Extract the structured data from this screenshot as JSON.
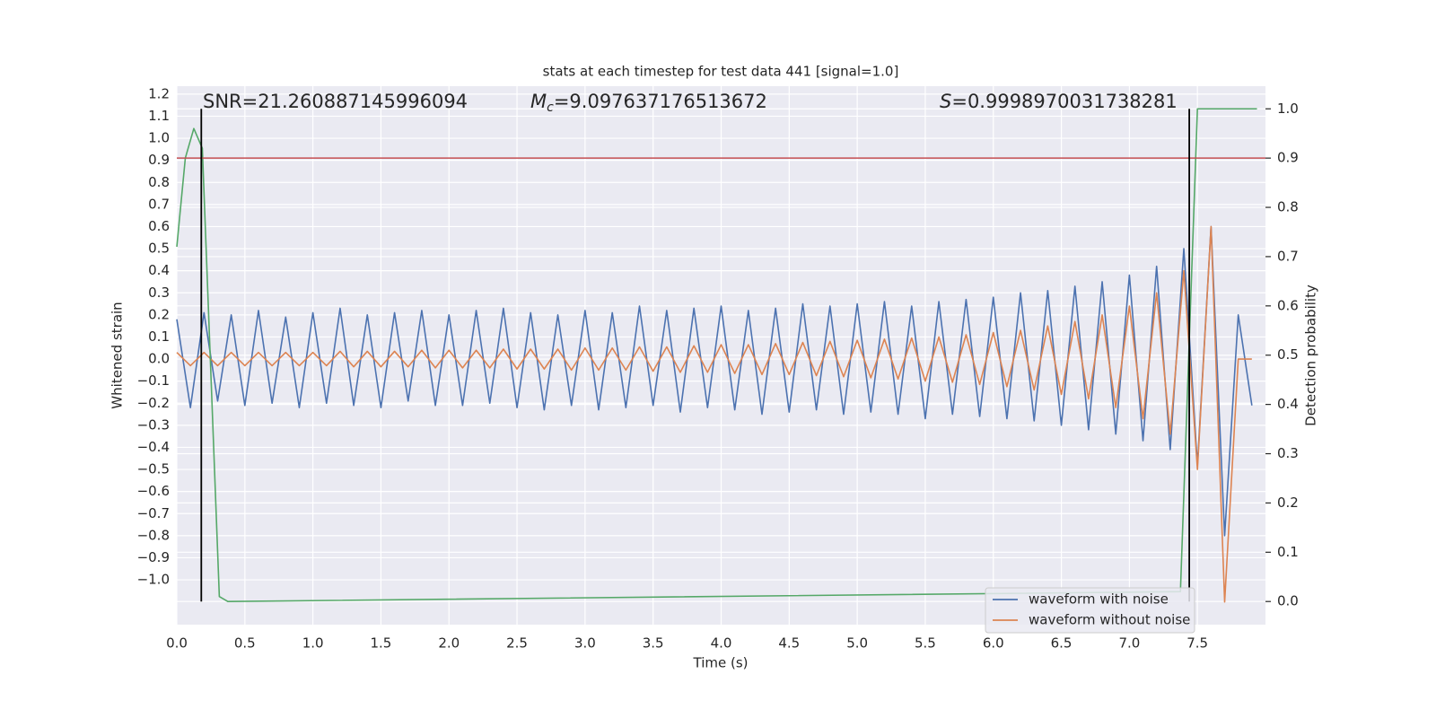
{
  "chart_data": {
    "type": "line",
    "title": "stats at each timestep for test data 441 [signal=1.0]",
    "xlabel": "Time (s)",
    "ylabel": "Whitened strain",
    "y2label": "Detection probability",
    "annotations": {
      "snr": "SNR=21.260887145996094",
      "mc": {
        "symbol": "M",
        "subscript": "c",
        "text": "=9.097637176513672"
      },
      "s": {
        "symbol": "S",
        "text": "=0.9998970031738281"
      }
    },
    "xlim": [
      0,
      8.0
    ],
    "ylim": [
      -1.203,
      1.236
    ],
    "y2lim": [
      -0.047,
      1.046
    ],
    "xticks": [
      {
        "value": 0,
        "label": "0.0"
      },
      {
        "value": 0.5,
        "label": "0.5"
      },
      {
        "value": 1,
        "label": "1.0"
      },
      {
        "value": 1.5,
        "label": "1.5"
      },
      {
        "value": 2,
        "label": "2.0"
      },
      {
        "value": 2.5,
        "label": "2.5"
      },
      {
        "value": 3,
        "label": "3.0"
      },
      {
        "value": 3.5,
        "label": "3.5"
      },
      {
        "value": 4,
        "label": "4.0"
      },
      {
        "value": 4.5,
        "label": "4.5"
      },
      {
        "value": 5,
        "label": "5.0"
      },
      {
        "value": 5.5,
        "label": "5.5"
      },
      {
        "value": 6,
        "label": "6.0"
      },
      {
        "value": 6.5,
        "label": "6.5"
      },
      {
        "value": 7,
        "label": "7.0"
      },
      {
        "value": 7.5,
        "label": "7.5"
      }
    ],
    "yticks": [
      {
        "value": -1.0,
        "label": "−1.0"
      },
      {
        "value": -0.9,
        "label": "−0.9"
      },
      {
        "value": -0.8,
        "label": "−0.8"
      },
      {
        "value": -0.7,
        "label": "−0.7"
      },
      {
        "value": -0.6,
        "label": "−0.6"
      },
      {
        "value": -0.5,
        "label": "−0.5"
      },
      {
        "value": -0.4,
        "label": "−0.4"
      },
      {
        "value": -0.3,
        "label": "−0.3"
      },
      {
        "value": -0.2,
        "label": "−0.2"
      },
      {
        "value": -0.1,
        "label": "−0.1"
      },
      {
        "value": 0,
        "label": "0.0"
      },
      {
        "value": 0.1,
        "label": "0.1"
      },
      {
        "value": 0.2,
        "label": "0.2"
      },
      {
        "value": 0.3,
        "label": "0.3"
      },
      {
        "value": 0.4,
        "label": "0.4"
      },
      {
        "value": 0.5,
        "label": "0.5"
      },
      {
        "value": 0.6,
        "label": "0.6"
      },
      {
        "value": 0.7,
        "label": "0.7"
      },
      {
        "value": 0.8,
        "label": "0.8"
      },
      {
        "value": 0.9,
        "label": "0.9"
      },
      {
        "value": 1.0,
        "label": "1.0"
      },
      {
        "value": 1.1,
        "label": "1.1"
      },
      {
        "value": 1.2,
        "label": "1.2"
      }
    ],
    "y2ticks": [
      {
        "value": 0,
        "label": "0.0"
      },
      {
        "value": 0.1,
        "label": "0.1"
      },
      {
        "value": 0.2,
        "label": "0.2"
      },
      {
        "value": 0.3,
        "label": "0.3"
      },
      {
        "value": 0.4,
        "label": "0.4"
      },
      {
        "value": 0.5,
        "label": "0.5"
      },
      {
        "value": 0.6,
        "label": "0.6"
      },
      {
        "value": 0.7,
        "label": "0.7"
      },
      {
        "value": 0.8,
        "label": "0.8"
      },
      {
        "value": 0.9,
        "label": "0.9"
      },
      {
        "value": 1,
        "label": "1.0"
      }
    ],
    "grid": true,
    "legend": "lower right",
    "hline": {
      "value": 0.9,
      "axis": "y2",
      "color": "#c44e52"
    },
    "vlines": {
      "x": [
        0.18,
        7.44
      ],
      "span": [
        0,
        1
      ],
      "axis": "y2",
      "color": "#000000"
    },
    "series": [
      {
        "name": "waveform with noise",
        "color": "#4c72b0",
        "x": [
          0,
          0.1,
          0.2,
          0.3,
          0.4,
          0.5,
          0.6,
          0.7,
          0.8,
          0.9,
          1,
          1.1,
          1.2,
          1.3,
          1.4,
          1.5,
          1.6,
          1.7,
          1.8,
          1.9,
          2,
          2.1,
          2.2,
          2.3,
          2.4,
          2.5,
          2.6,
          2.7,
          2.8,
          2.9,
          3,
          3.1,
          3.2,
          3.3,
          3.4,
          3.5,
          3.6,
          3.7,
          3.8,
          3.9,
          4,
          4.1,
          4.2,
          4.3,
          4.4,
          4.5,
          4.6,
          4.7,
          4.8,
          4.9,
          5,
          5.1,
          5.2,
          5.3,
          5.4,
          5.5,
          5.6,
          5.7,
          5.8,
          5.9,
          6,
          6.1,
          6.2,
          6.3,
          6.4,
          6.5,
          6.6,
          6.7,
          6.8,
          6.9,
          7,
          7.1,
          7.2,
          7.3,
          7.4,
          7.5,
          7.6,
          7.7,
          7.8,
          7.9
        ],
        "values": [
          0.18,
          -0.22,
          0.21,
          -0.19,
          0.2,
          -0.21,
          0.22,
          -0.2,
          0.19,
          -0.22,
          0.21,
          -0.2,
          0.23,
          -0.21,
          0.2,
          -0.22,
          0.21,
          -0.19,
          0.22,
          -0.21,
          0.2,
          -0.21,
          0.22,
          -0.2,
          0.23,
          -0.22,
          0.21,
          -0.23,
          0.2,
          -0.21,
          0.22,
          -0.23,
          0.21,
          -0.22,
          0.24,
          -0.21,
          0.22,
          -0.24,
          0.23,
          -0.22,
          0.24,
          -0.23,
          0.22,
          -0.25,
          0.23,
          -0.24,
          0.25,
          -0.23,
          0.24,
          -0.25,
          0.25,
          -0.24,
          0.26,
          -0.25,
          0.24,
          -0.27,
          0.26,
          -0.25,
          0.27,
          -0.26,
          0.28,
          -0.27,
          0.3,
          -0.28,
          0.31,
          -0.3,
          0.33,
          -0.32,
          0.35,
          -0.34,
          0.38,
          -0.37,
          0.42,
          -0.41,
          0.5,
          -0.48,
          0.6,
          -0.8,
          0.2,
          -0.21
        ]
      },
      {
        "name": "waveform without noise",
        "color": "#dd8452",
        "x": [
          0,
          0.1,
          0.2,
          0.3,
          0.4,
          0.5,
          0.6,
          0.7,
          0.8,
          0.9,
          1,
          1.1,
          1.2,
          1.3,
          1.4,
          1.5,
          1.6,
          1.7,
          1.8,
          1.9,
          2,
          2.1,
          2.2,
          2.3,
          2.4,
          2.5,
          2.6,
          2.7,
          2.8,
          2.9,
          3,
          3.1,
          3.2,
          3.3,
          3.4,
          3.5,
          3.6,
          3.7,
          3.8,
          3.9,
          4,
          4.1,
          4.2,
          4.3,
          4.4,
          4.5,
          4.6,
          4.7,
          4.8,
          4.9,
          5,
          5.1,
          5.2,
          5.3,
          5.4,
          5.5,
          5.6,
          5.7,
          5.8,
          5.9,
          6,
          6.1,
          6.2,
          6.3,
          6.4,
          6.5,
          6.6,
          6.7,
          6.8,
          6.9,
          7,
          7.1,
          7.2,
          7.3,
          7.4,
          7.5,
          7.6,
          7.7,
          7.8,
          7.9
        ],
        "values": [
          0.03,
          -0.03,
          0.03,
          -0.03,
          0.03,
          -0.03,
          0.03,
          -0.03,
          0.03,
          -0.03,
          0.03,
          -0.03,
          0.035,
          -0.035,
          0.035,
          -0.035,
          0.035,
          -0.035,
          0.04,
          -0.04,
          0.04,
          -0.04,
          0.04,
          -0.04,
          0.045,
          -0.045,
          0.045,
          -0.045,
          0.045,
          -0.05,
          0.05,
          -0.05,
          0.05,
          -0.05,
          0.055,
          -0.055,
          0.055,
          -0.06,
          0.06,
          -0.06,
          0.065,
          -0.065,
          0.065,
          -0.07,
          0.07,
          -0.07,
          0.075,
          -0.075,
          0.08,
          -0.08,
          0.085,
          -0.085,
          0.09,
          -0.09,
          0.095,
          -0.1,
          0.1,
          -0.105,
          0.11,
          -0.115,
          0.12,
          -0.125,
          0.13,
          -0.14,
          0.15,
          -0.16,
          0.17,
          -0.18,
          0.2,
          -0.22,
          0.24,
          -0.27,
          0.3,
          -0.34,
          0.4,
          -0.5,
          0.6,
          -1.1,
          0,
          0
        ]
      },
      {
        "color": "#55a868",
        "axis": "y2",
        "x": [
          0,
          0.0625,
          0.125,
          0.1875,
          0.3125,
          0.375,
          7.375,
          7.5,
          7.9375
        ],
        "values": [
          0.72,
          0.9,
          0.96,
          0.92,
          0.01,
          0,
          0.02,
          1.0,
          1.0
        ]
      }
    ]
  }
}
